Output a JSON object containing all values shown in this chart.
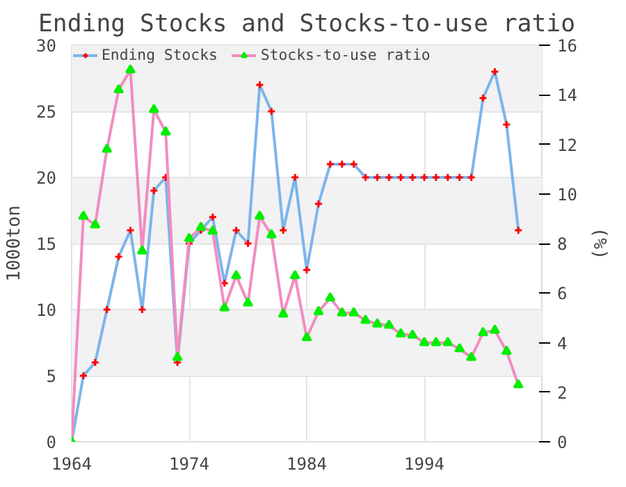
{
  "chart_data": {
    "type": "line",
    "title": "Ending Stocks and Stocks-to-use ratio",
    "ylabel": "1000ton",
    "y2label": "(%)",
    "x": [
      1964,
      1965,
      1966,
      1967,
      1968,
      1969,
      1970,
      1971,
      1972,
      1973,
      1974,
      1975,
      1976,
      1977,
      1978,
      1979,
      1980,
      1981,
      1982,
      1983,
      1984,
      1985,
      1986,
      1987,
      1988,
      1989,
      1990,
      1991,
      1992,
      1993,
      1994,
      1995,
      1996,
      1997,
      1998,
      1999,
      2000,
      2001,
      2002
    ],
    "series": [
      {
        "name": "Ending Stocks",
        "color": "#7cb5ec",
        "marker": "cross",
        "values": [
          0,
          5,
          6,
          10,
          14,
          16,
          10,
          19,
          20,
          6,
          15,
          16,
          17,
          12,
          16,
          15,
          27,
          25,
          16,
          20,
          13,
          18,
          21,
          21,
          21,
          20,
          20,
          20,
          20,
          20,
          20,
          20,
          20,
          20,
          20,
          26,
          28,
          24,
          16
        ]
      },
      {
        "name": "Stocks-to-use ratio",
        "color": "#f28cc0",
        "marker": "triangle",
        "axis": "y2",
        "values": [
          0,
          9.1,
          8.75,
          11.8,
          14.2,
          15.0,
          7.7,
          13.4,
          12.5,
          3.4,
          8.2,
          8.65,
          8.5,
          5.4,
          6.7,
          5.6,
          9.1,
          8.35,
          5.15,
          6.7,
          4.2,
          5.25,
          5.8,
          5.2,
          5.2,
          4.9,
          4.75,
          4.7,
          4.35,
          4.3,
          4.0,
          4.0,
          4.0,
          3.75,
          3.4,
          4.4,
          4.5,
          3.65,
          2.3
        ]
      }
    ],
    "xlim": [
      1964,
      2004
    ],
    "xticks": [
      1964,
      1974,
      1984,
      1994
    ],
    "ylim": [
      0,
      30
    ],
    "yticks": [
      0,
      5,
      10,
      15,
      20,
      25,
      30
    ],
    "y2lim": [
      0,
      16
    ],
    "y2ticks": [
      0,
      2,
      4,
      6,
      8,
      10,
      12,
      14,
      16
    ],
    "grid": true,
    "legend": "top left"
  }
}
